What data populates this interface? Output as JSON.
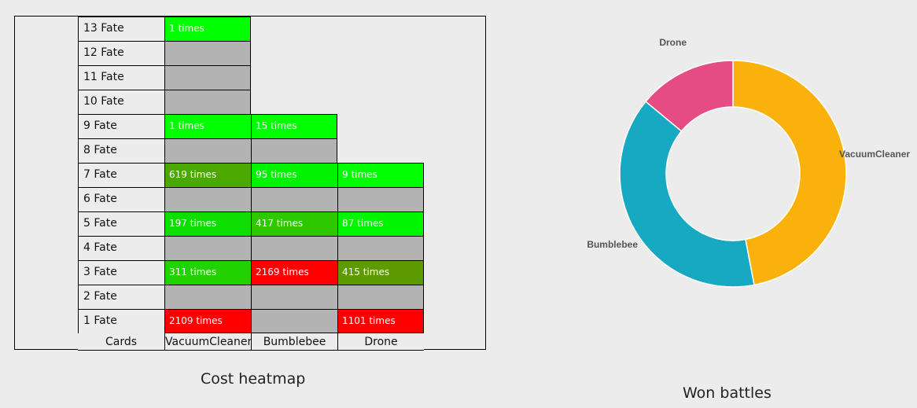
{
  "chart_data": [
    {
      "type": "heatmap",
      "title": "Cost heatmap",
      "corner_label": "Cards",
      "columns": [
        "VacuumCleaner",
        "Bumblebee",
        "Drone"
      ],
      "rows": [
        "13 Fate",
        "12 Fate",
        "11 Fate",
        "10 Fate",
        "9 Fate",
        "8 Fate",
        "7 Fate",
        "6 Fate",
        "5 Fate",
        "4 Fate",
        "3 Fate",
        "2 Fate",
        "1 Fate"
      ],
      "cells": [
        [
          {
            "text": "1 times",
            "color": "#00ff00"
          },
          null,
          null
        ],
        [
          {
            "text": "",
            "color": "#b3b3b3"
          },
          null,
          null
        ],
        [
          {
            "text": "",
            "color": "#b3b3b3"
          },
          null,
          null
        ],
        [
          {
            "text": "",
            "color": "#b3b3b3"
          },
          null,
          null
        ],
        [
          {
            "text": "1 times",
            "color": "#00ff00"
          },
          {
            "text": "15 times",
            "color": "#00ff00"
          },
          null
        ],
        [
          {
            "text": "",
            "color": "#b3b3b3"
          },
          {
            "text": "",
            "color": "#b3b3b3"
          },
          null
        ],
        [
          {
            "text": "619 times",
            "color": "#4aa800"
          },
          {
            "text": "95 times",
            "color": "#00f200"
          },
          {
            "text": "9 times",
            "color": "#00ff00"
          }
        ],
        [
          {
            "text": "",
            "color": "#b3b3b3"
          },
          {
            "text": "",
            "color": "#b3b3b3"
          },
          {
            "text": "",
            "color": "#b3b3b3"
          }
        ],
        [
          {
            "text": "197 times",
            "color": "#0ddd00"
          },
          {
            "text": "417 times",
            "color": "#2ec800"
          },
          {
            "text": "87 times",
            "color": "#00f500"
          }
        ],
        [
          {
            "text": "",
            "color": "#b3b3b3"
          },
          {
            "text": "",
            "color": "#b3b3b3"
          },
          {
            "text": "",
            "color": "#b3b3b3"
          }
        ],
        [
          {
            "text": "311 times",
            "color": "#22d200"
          },
          {
            "text": "2169 times",
            "color": "#ff0000"
          },
          {
            "text": "415 times",
            "color": "#5c9a00"
          }
        ],
        [
          {
            "text": "",
            "color": "#b3b3b3"
          },
          {
            "text": "",
            "color": "#b3b3b3"
          },
          {
            "text": "",
            "color": "#b3b3b3"
          }
        ],
        [
          {
            "text": "2109 times",
            "color": "#ff0000"
          },
          {
            "text": "",
            "color": "#b3b3b3"
          },
          {
            "text": "1101 times",
            "color": "#ff0000"
          }
        ]
      ]
    },
    {
      "type": "pie",
      "title": "Won battles",
      "slices": [
        {
          "label": "VacuumCleaner",
          "value": 47,
          "color": "#fbb10c"
        },
        {
          "label": "Bumblebee",
          "value": 39,
          "color": "#18a9c2"
        },
        {
          "label": "Drone",
          "value": 14,
          "color": "#e54c84"
        }
      ]
    }
  ]
}
